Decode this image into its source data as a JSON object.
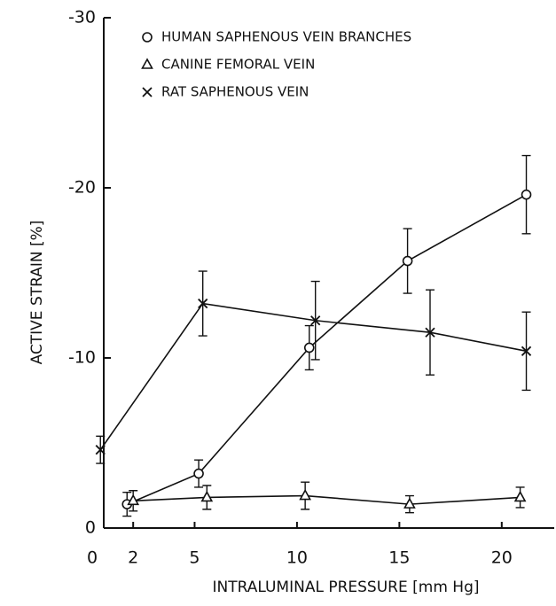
{
  "chart_data": {
    "type": "line",
    "xlabel": "INTRALUMINAL PRESSURE [mm Hg]",
    "ylabel": "ACTIVE STRAIN [%]",
    "xlim": [
      0,
      22
    ],
    "xticks": [
      0,
      2,
      5,
      10,
      15,
      20
    ],
    "ylim": [
      0,
      -30
    ],
    "yticks": [
      0,
      -10,
      -20,
      -30
    ],
    "grid": false,
    "legend": "upper left",
    "series": [
      {
        "name": "HUMAN SAPHENOUS VEIN BRANCHES",
        "color": "#111111",
        "marker": "circle",
        "x": [
          1.7,
          5.2,
          10.6,
          15.4,
          21.2
        ],
        "values": [
          -1.4,
          -3.2,
          -10.6,
          -15.7,
          -19.6
        ],
        "errors": [
          0.7,
          0.8,
          1.3,
          1.9,
          2.3
        ]
      },
      {
        "name": "CANINE FEMORAL VEIN",
        "color": "#111111",
        "marker": "triangle",
        "x": [
          2.0,
          5.6,
          10.4,
          15.5,
          20.9
        ],
        "values": [
          -1.6,
          -1.8,
          -1.9,
          -1.4,
          -1.8
        ],
        "errors": [
          0.6,
          0.7,
          0.8,
          0.5,
          0.6
        ]
      },
      {
        "name": "RAT SAPHENOUS VEIN",
        "color": "#111111",
        "marker": "x",
        "x": [
          0.4,
          5.4,
          10.9,
          16.5,
          21.2
        ],
        "values": [
          -4.6,
          -13.2,
          -12.2,
          -11.5,
          -10.4
        ],
        "errors": [
          0.8,
          1.9,
          2.3,
          2.5,
          2.3
        ]
      }
    ]
  }
}
